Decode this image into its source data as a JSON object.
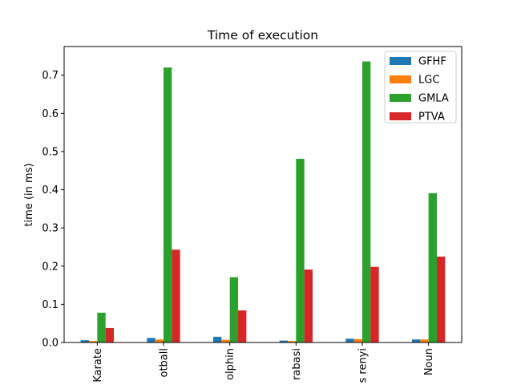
{
  "chart_data": {
    "type": "bar",
    "title": "Time of execution",
    "xlabel": "",
    "ylabel": "time (in ms)",
    "categories": [
      "Karate",
      "otball",
      "olphin",
      "rabasi",
      "s renyi",
      "Noun"
    ],
    "series": [
      {
        "name": "GFHF",
        "color": "#1f77b4",
        "values": [
          0.006,
          0.012,
          0.015,
          0.005,
          0.01,
          0.008
        ]
      },
      {
        "name": "LGC",
        "color": "#ff7f0e",
        "values": [
          0.004,
          0.008,
          0.007,
          0.004,
          0.009,
          0.008
        ]
      },
      {
        "name": "GMLA",
        "color": "#2ca02c",
        "values": [
          0.078,
          0.72,
          0.171,
          0.481,
          0.736,
          0.391
        ]
      },
      {
        "name": "PTVA",
        "color": "#d62728",
        "values": [
          0.038,
          0.243,
          0.084,
          0.191,
          0.198,
          0.225
        ]
      }
    ],
    "ylim": [
      0,
      0.775
    ],
    "yticks": [
      0.0,
      0.1,
      0.2,
      0.3,
      0.4,
      0.5,
      0.6,
      0.7
    ],
    "ytick_labels": [
      "0.0",
      "0.1",
      "0.2",
      "0.3",
      "0.4",
      "0.5",
      "0.6",
      "0.7"
    ],
    "grid": false,
    "legend_position": "top-right"
  }
}
